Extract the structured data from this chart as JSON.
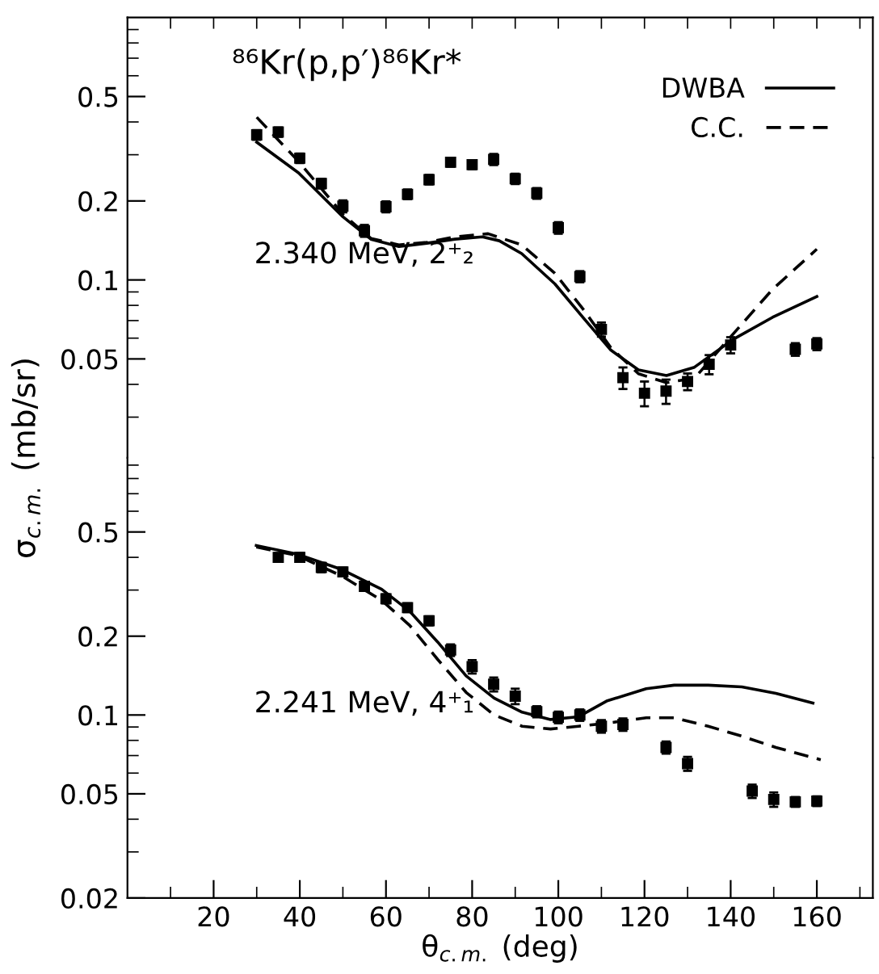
{
  "chart_data": [
    {
      "type": "scatter",
      "title": "⁸⁶Kr(p,p′)⁸⁶Kr*",
      "ylabel": "σ$_{c.m.}$ (mb/sr)",
      "log": "y",
      "tick_labels": "y",
      "legend": "top right",
      "grid": false,
      "marker": "square",
      "annotations": [
        "2.340 MeV, 2⁺₂"
      ],
      "xlim": [
        0,
        173
      ],
      "xticks": [
        {
          "value": 10,
          "label": null
        },
        {
          "value": 20,
          "label": null
        },
        {
          "value": 30,
          "label": null
        },
        {
          "value": 40,
          "label": null
        },
        {
          "value": 50,
          "label": null
        },
        {
          "value": 60,
          "label": null
        },
        {
          "value": 70,
          "label": null
        },
        {
          "value": 80,
          "label": null
        },
        {
          "value": 90,
          "label": null
        },
        {
          "value": 100,
          "label": null
        },
        {
          "value": 110,
          "label": null
        },
        {
          "value": 120,
          "label": null
        },
        {
          "value": 130,
          "label": null
        },
        {
          "value": 140,
          "label": null
        },
        {
          "value": 150,
          "label": null
        },
        {
          "value": 160,
          "label": null
        },
        {
          "value": 170,
          "label": null
        }
      ],
      "ylim": [
        0.021,
        1.0
      ],
      "yticks": [
        {
          "value": 0.03,
          "label": null
        },
        {
          "value": 0.04,
          "label": null
        },
        0.05,
        {
          "value": 0.06,
          "label": null
        },
        {
          "value": 0.07,
          "label": null
        },
        {
          "value": 0.08,
          "label": null
        },
        {
          "value": 0.09,
          "label": null
        },
        0.1,
        0.2,
        {
          "value": 0.3,
          "label": null
        },
        {
          "value": 0.4,
          "label": null
        },
        0.5,
        {
          "value": 0.6,
          "label": null
        },
        {
          "value": 0.7,
          "label": null
        },
        {
          "value": 0.8,
          "label": null
        },
        {
          "value": 0.9,
          "label": null
        }
      ],
      "series": [
        {
          "color": "#000000",
          "x": [
            30,
            35,
            40,
            45,
            50,
            55,
            60,
            65,
            70,
            75,
            80,
            85,
            90,
            95,
            100,
            105,
            110,
            115,
            120,
            125,
            130,
            135,
            140,
            155,
            160
          ],
          "values": [
            0.357,
            0.366,
            0.291,
            0.233,
            0.191,
            0.154,
            0.19,
            0.212,
            0.241,
            0.281,
            0.275,
            0.288,
            0.243,
            0.214,
            0.158,
            0.103,
            0.0648,
            0.0424,
            0.037,
            0.0377,
            0.041,
            0.0477,
            0.0565,
            0.0544,
            0.057
          ],
          "errors": [
            0.015,
            0.015,
            0.012,
            0.01,
            0.01,
            0.008,
            0.009,
            0.009,
            0.01,
            0.011,
            0.011,
            0.014,
            0.011,
            0.01,
            0.008,
            0.005,
            0.004,
            0.004,
            0.004,
            0.004,
            0.003,
            0.004,
            0.004,
            0.003,
            0.003
          ]
        },
        {
          "type": "line",
          "name": "DWBA",
          "color": "#000000",
          "line_style": "solid",
          "marker": "none",
          "x": [
            30,
            39.7,
            50,
            56.5,
            63,
            69.5,
            76,
            82.4,
            86.3,
            91.5,
            99.2,
            105.7,
            112.2,
            118.6,
            125.1,
            131.6,
            140.6,
            149.7,
            160
          ],
          "values": [
            0.335,
            0.256,
            0.174,
            0.143,
            0.134,
            0.138,
            0.143,
            0.146,
            0.141,
            0.126,
            0.0966,
            0.072,
            0.054,
            0.0454,
            0.0432,
            0.0465,
            0.0594,
            0.072,
            0.0864
          ]
        },
        {
          "type": "line",
          "name": "C.C.",
          "color": "#000000",
          "line_style": "dashed",
          "marker": "none",
          "x": [
            30,
            39.7,
            50,
            56.5,
            63,
            69.5,
            76,
            83.7,
            91.5,
            99.2,
            105.7,
            112.2,
            118.6,
            125.1,
            131.6,
            140.6,
            149.7,
            160
          ],
          "values": [
            0.417,
            0.283,
            0.178,
            0.144,
            0.136,
            0.139,
            0.146,
            0.15,
            0.136,
            0.106,
            0.0776,
            0.0552,
            0.0439,
            0.0406,
            0.0422,
            0.0623,
            0.092,
            0.131
          ]
        }
      ]
    },
    {
      "type": "scatter",
      "xlabel": "θ$_{c.m.}$ (deg)",
      "log": "y",
      "grid": false,
      "marker": "square",
      "annotations": [
        "2.241 MeV, 4⁺₁"
      ],
      "xlim": [
        0,
        173
      ],
      "xticks": [
        {
          "value": 10,
          "label": null
        },
        20,
        {
          "value": 30,
          "label": null
        },
        40,
        {
          "value": 50,
          "label": null
        },
        60,
        {
          "value": 70,
          "label": null
        },
        80,
        {
          "value": 90,
          "label": null
        },
        100,
        {
          "value": 110,
          "label": null
        },
        120,
        {
          "value": 130,
          "label": null
        },
        140,
        {
          "value": 150,
          "label": null
        },
        160,
        {
          "value": 170,
          "label": null
        }
      ],
      "ylim": [
        0.02,
        0.96
      ],
      "yticks": [
        0.02,
        {
          "value": 0.03,
          "label": null
        },
        {
          "value": 0.04,
          "label": null
        },
        0.05,
        {
          "value": 0.06,
          "label": null
        },
        {
          "value": 0.07,
          "label": null
        },
        {
          "value": 0.08,
          "label": null
        },
        {
          "value": 0.09,
          "label": null
        },
        0.1,
        0.2,
        {
          "value": 0.3,
          "label": null
        },
        {
          "value": 0.4,
          "label": null
        },
        0.5,
        {
          "value": 0.6,
          "label": null
        },
        {
          "value": 0.7,
          "label": null
        },
        {
          "value": 0.8,
          "label": null
        },
        {
          "value": 0.9,
          "label": null
        }
      ],
      "series": [
        {
          "color": "#000000",
          "x": [
            35,
            40,
            45,
            50,
            55,
            60,
            65,
            70,
            75,
            80,
            85,
            90,
            95,
            100,
            105,
            110,
            115,
            125,
            130,
            145,
            150,
            155,
            160
          ],
          "values": [
            0.4,
            0.4,
            0.366,
            0.352,
            0.31,
            0.278,
            0.257,
            0.229,
            0.177,
            0.153,
            0.131,
            0.118,
            0.103,
            0.098,
            0.1,
            0.0906,
            0.092,
            0.0752,
            0.0652,
            0.0512,
            0.0476,
            0.0466,
            0.0469
          ],
          "errors": [
            0.015,
            0.015,
            0.015,
            0.013,
            0.012,
            0.011,
            0.01,
            0.009,
            0.009,
            0.009,
            0.008,
            0.008,
            0.005,
            0.005,
            0.005,
            0.005,
            0.005,
            0.004,
            0.004,
            0.003,
            0.003,
            0.002,
            0.002
          ]
        },
        {
          "type": "line",
          "color": "#000000",
          "line_style": "solid",
          "marker": "none",
          "x": [
            29.9,
            39.3,
            49.8,
            59,
            65.5,
            72,
            78.6,
            85.1,
            91.6,
            98.2,
            104.7,
            111.2,
            120.4,
            126.9,
            134.8,
            142.6,
            150.5,
            159.1
          ],
          "values": [
            0.444,
            0.412,
            0.359,
            0.302,
            0.249,
            0.19,
            0.141,
            0.116,
            0.1025,
            0.0961,
            0.0985,
            0.113,
            0.126,
            0.13,
            0.13,
            0.128,
            0.121,
            0.111
          ]
        },
        {
          "type": "line",
          "color": "#000000",
          "line_style": "dashed",
          "marker": "none",
          "x": [
            29.9,
            39.3,
            49.8,
            59,
            65.5,
            72,
            78.6,
            85.1,
            91.6,
            98.2,
            104.7,
            111.2,
            120.4,
            126.9,
            134.8,
            142.6,
            150.5,
            160.9
          ],
          "values": [
            0.438,
            0.407,
            0.339,
            0.274,
            0.22,
            0.163,
            0.122,
            0.1,
            0.0906,
            0.0884,
            0.0906,
            0.093,
            0.0976,
            0.0976,
            0.0906,
            0.083,
            0.0752,
            0.0675
          ]
        }
      ]
    }
  ]
}
